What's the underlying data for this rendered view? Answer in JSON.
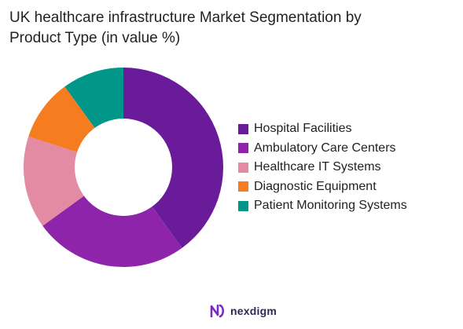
{
  "chart_data": {
    "type": "pie",
    "title_lines": [
      "UK healthcare infrastructure Market Segmentation by",
      "Product Type (in value %)"
    ],
    "categories": [
      "Hospital Facilities",
      "Ambulatory Care Centers",
      "Healthcare IT Systems",
      "Diagnostic Equipment",
      "Patient Monitoring Systems"
    ],
    "values": [
      40,
      25,
      15,
      10,
      10
    ],
    "colors": [
      "#6a1b9a",
      "#8e24aa",
      "#e28ba3",
      "#f57c1f",
      "#009688"
    ],
    "donut": true,
    "legend_position": "right"
  },
  "brand": {
    "name": "nexdigm",
    "icon": "nexdigm-logo-icon"
  }
}
